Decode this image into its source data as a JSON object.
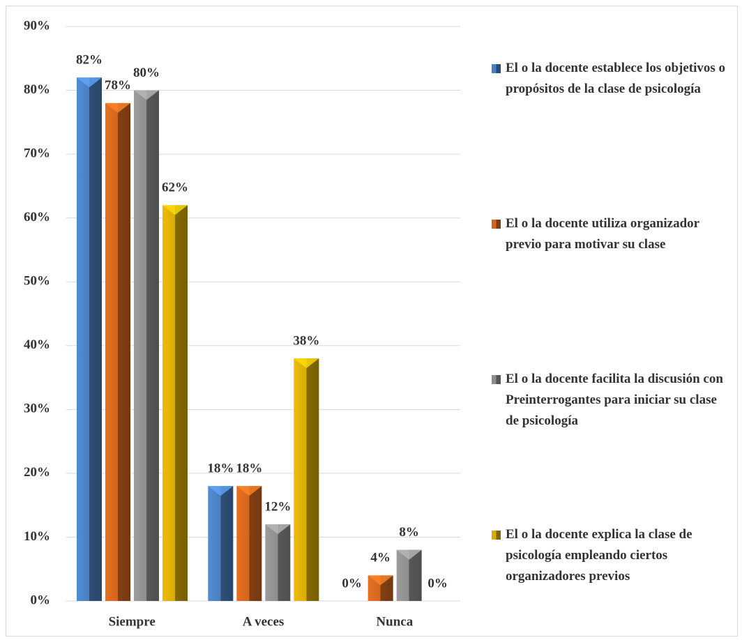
{
  "chart_data": {
    "type": "bar",
    "categories": [
      "Siempre",
      "A veces",
      "Nunca"
    ],
    "series": [
      {
        "name": "El o la docente establece los objetivos o propósitos de la clase de psicología",
        "color": "#4a7fc0",
        "values": [
          82,
          18,
          0
        ],
        "value_labels": [
          "82%",
          "18%",
          "0%"
        ]
      },
      {
        "name": "El o la docente utiliza organizador previo para motivar su clase",
        "color": "#d2661e",
        "values": [
          78,
          18,
          4
        ],
        "value_labels": [
          "78%",
          "18%",
          "4%"
        ]
      },
      {
        "name": "El o la docente facilita la discusión con Preinterrogantes para iniciar su clase de psicología",
        "color": "#8e8e8e",
        "values": [
          80,
          12,
          8
        ],
        "value_labels": [
          "80%",
          "12%",
          "8%"
        ]
      },
      {
        "name": "El o la docente explica la clase de psicología empleando ciertos organizadores previos",
        "color": "#d8ab08",
        "values": [
          62,
          38,
          0
        ],
        "value_labels": [
          "62%",
          "38%",
          "0%"
        ]
      }
    ],
    "ylim": [
      0,
      90
    ],
    "yticks": [
      {
        "value": 0,
        "label": "0%"
      },
      {
        "value": 10,
        "label": "10%"
      },
      {
        "value": 20,
        "label": "20%"
      },
      {
        "value": 30,
        "label": "30%"
      },
      {
        "value": 40,
        "label": "40%"
      },
      {
        "value": 50,
        "label": "50%"
      },
      {
        "value": 60,
        "label": "60%"
      },
      {
        "value": 70,
        "label": "70%"
      },
      {
        "value": 80,
        "label": "80%"
      },
      {
        "value": 90,
        "label": "90%"
      }
    ],
    "grid": true,
    "legend": "right"
  }
}
